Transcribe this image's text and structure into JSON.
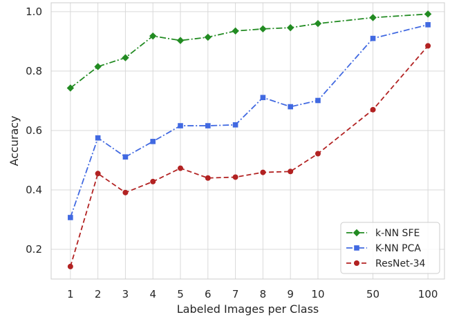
{
  "chart_data": {
    "type": "line",
    "categories": [
      "1",
      "2",
      "3",
      "4",
      "5",
      "6",
      "7",
      "8",
      "9",
      "10",
      "50",
      "100"
    ],
    "x_positions": [
      1,
      2,
      3,
      4,
      5,
      6,
      7,
      8,
      9,
      10,
      12,
      14
    ],
    "xlabel": "Labeled Images per Class",
    "ylabel": "Accuracy",
    "ylim": [
      0.1,
      1.03
    ],
    "xlim": [
      0.3,
      14.6
    ],
    "yticks": [
      0.2,
      0.4,
      0.6,
      0.8,
      1.0
    ],
    "ytick_labels": [
      "0.2",
      "0.4",
      "0.6",
      "0.8",
      "1.0"
    ],
    "grid": true,
    "legend_position": "bottom-right",
    "series": [
      {
        "name": "k-NN SFE",
        "values": [
          0.743,
          0.815,
          0.845,
          0.918,
          0.903,
          0.914,
          0.935,
          0.942,
          0.946,
          0.96,
          0.98,
          0.992
        ],
        "color": "#228b22",
        "marker": "diamond",
        "dash": "dash-dot"
      },
      {
        "name": "K-NN PCA",
        "values": [
          0.307,
          0.575,
          0.511,
          0.563,
          0.616,
          0.616,
          0.619,
          0.711,
          0.68,
          0.701,
          0.91,
          0.956
        ],
        "color": "#4169e1",
        "marker": "square",
        "dash": "dash-dot"
      },
      {
        "name": "ResNet-34",
        "values": [
          0.142,
          0.455,
          0.391,
          0.428,
          0.473,
          0.44,
          0.443,
          0.459,
          0.462,
          0.522,
          0.67,
          0.885
        ],
        "color": "#b22222",
        "marker": "circle",
        "dash": "dashed"
      }
    ]
  }
}
